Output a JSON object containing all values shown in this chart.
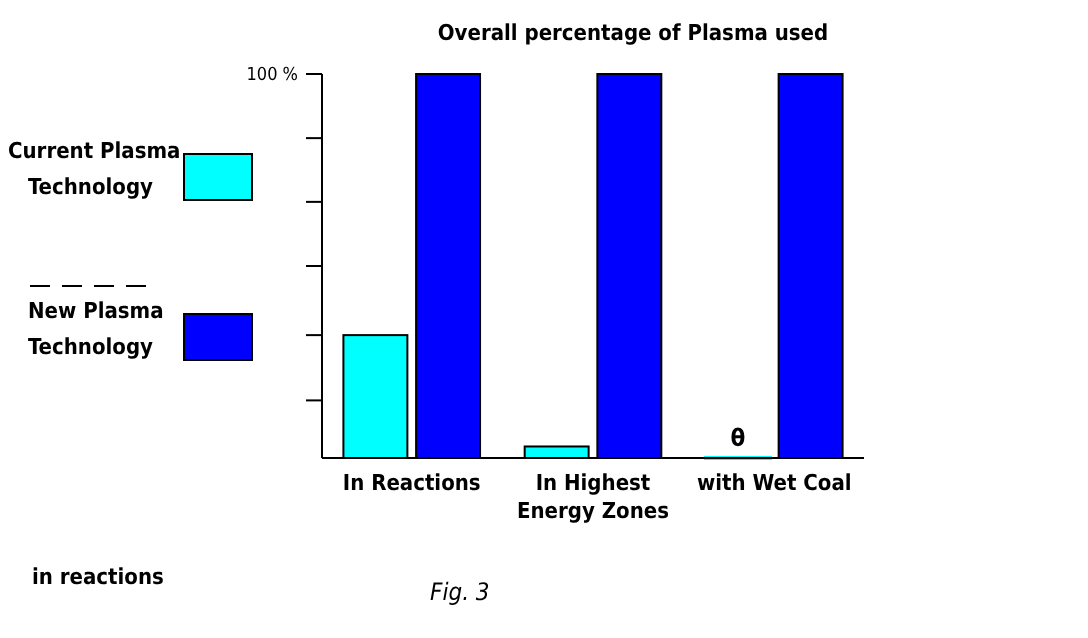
{
  "chart_data": {
    "type": "bar",
    "title": "Overall percentage of Plasma used",
    "categories": [
      "In Reactions",
      "In Highest\nEnergy Zones",
      "with Wet Coal"
    ],
    "series": [
      {
        "name": "Current Plasma Technology",
        "color": "#00ffff",
        "values": [
          32,
          3,
          0
        ],
        "value_labels": [
          null,
          null,
          "θ"
        ]
      },
      {
        "name": "New Plasma Technology",
        "color": "#0000ff",
        "values": [
          100,
          100,
          100
        ]
      }
    ],
    "ylim": [
      0,
      100
    ],
    "yticks": [
      {
        "value": 15,
        "label": null
      },
      {
        "value": 32,
        "label": null
      },
      {
        "value": 50,
        "label": null
      },
      {
        "value": 66.7,
        "label": null
      },
      {
        "value": 83.3,
        "label": null
      },
      {
        "value": 100,
        "label": "100 %"
      }
    ],
    "legend": "left",
    "grid": false,
    "annotations": [
      "in reactions",
      "Fig. 3"
    ]
  }
}
